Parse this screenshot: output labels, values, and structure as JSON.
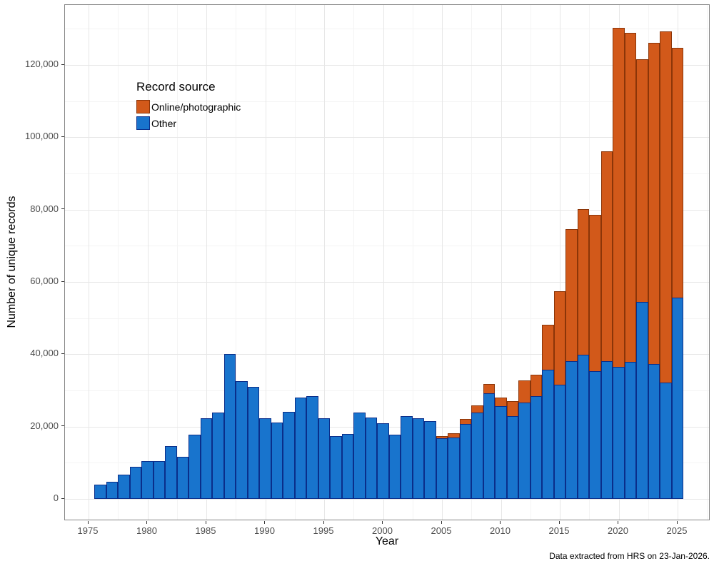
{
  "chart_data": {
    "type": "bar",
    "stacked": true,
    "title": "",
    "xlabel": "Year",
    "ylabel": "Number of unique records",
    "caption": "Data extracted from HRS on 23-Jan-2026.",
    "grid": true,
    "ylim": [
      0,
      136700
    ],
    "xlim": [
      1973,
      2028
    ],
    "y_tick_values": [
      0,
      20000,
      40000,
      60000,
      80000,
      100000,
      120000
    ],
    "y_tick_labels": [
      "0",
      "20,000",
      "40,000",
      "60,000",
      "80,000",
      "100,000",
      "120,000"
    ],
    "x_ticks": [
      1975,
      1980,
      1985,
      1990,
      1995,
      2000,
      2005,
      2010,
      2015,
      2020,
      2025
    ],
    "years": [
      1976,
      1977,
      1978,
      1979,
      1980,
      1981,
      1982,
      1983,
      1984,
      1985,
      1986,
      1987,
      1988,
      1989,
      1990,
      1991,
      1992,
      1993,
      1994,
      1995,
      1996,
      1997,
      1998,
      1999,
      2000,
      2001,
      2002,
      2003,
      2004,
      2005,
      2006,
      2007,
      2008,
      2009,
      2010,
      2011,
      2012,
      2013,
      2014,
      2015,
      2016,
      2017,
      2018,
      2019,
      2020,
      2021,
      2022,
      2023,
      2024,
      2025
    ],
    "series": [
      {
        "name": "Other",
        "fill": "#1874CD",
        "border": "#0A2E8A",
        "values": [
          3900,
          4700,
          6700,
          8900,
          10500,
          10500,
          14700,
          11600,
          17700,
          22300,
          23800,
          40000,
          32500,
          30900,
          22400,
          21200,
          24100,
          28000,
          28500,
          22300,
          17400,
          18000,
          23800,
          22500,
          21000,
          17800,
          22800,
          22300,
          21600,
          16800,
          16900,
          20800,
          23800,
          29200,
          25600,
          22800,
          26700,
          28400,
          35700,
          31500,
          38100,
          39900,
          35300,
          38000,
          36600,
          37900,
          54400,
          37300,
          32200,
          55700
        ]
      },
      {
        "name": "Online/photographic",
        "fill": "#D2591A",
        "border": "#8B3508",
        "values": [
          0,
          0,
          0,
          0,
          0,
          0,
          0,
          0,
          0,
          0,
          0,
          0,
          0,
          0,
          0,
          0,
          0,
          0,
          0,
          0,
          0,
          0,
          0,
          0,
          0,
          0,
          0,
          0,
          0,
          600,
          1300,
          1300,
          2100,
          2500,
          2400,
          4300,
          6100,
          6000,
          12400,
          25900,
          36500,
          40300,
          43300,
          58200,
          93600,
          90900,
          67100,
          88800,
          97000,
          69100
        ]
      }
    ],
    "legend": {
      "title": "Record source",
      "position": "inside top-left",
      "entries": [
        {
          "label": "Online/photographic",
          "fill": "#D2591A",
          "border": "#8B3508"
        },
        {
          "label": "Other",
          "fill": "#1874CD",
          "border": "#0A2E8A"
        }
      ]
    }
  }
}
